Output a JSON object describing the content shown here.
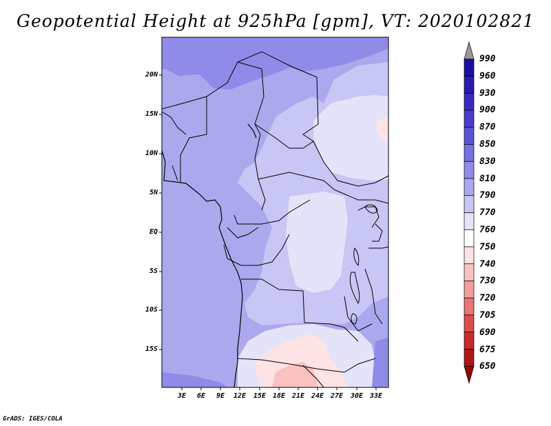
{
  "title": "Geopotential Height at 925hPa [gpm], VT: 2020102821",
  "footer": "GrADS: IGES/COLA",
  "map": {
    "y_ticks": [
      "20N",
      "15N",
      "10N",
      "5N",
      "EQ",
      "5S",
      "10S",
      "15S"
    ],
    "x_ticks": [
      "3E",
      "6E",
      "9E",
      "12E",
      "15E",
      "18E",
      "21E",
      "24E",
      "27E",
      "30E",
      "33E"
    ]
  },
  "colorbar": {
    "levels": [
      "990",
      "960",
      "930",
      "900",
      "870",
      "850",
      "830",
      "810",
      "790",
      "770",
      "760",
      "750",
      "740",
      "730",
      "720",
      "705",
      "690",
      "675",
      "650"
    ],
    "colors": [
      "#9a9a9a",
      "#1a0fa0",
      "#2a1ab0",
      "#3a2abf",
      "#4b3dcb",
      "#5c54d6",
      "#7670e0",
      "#908be8",
      "#aba8ee",
      "#c8c6f4",
      "#e4e3fa",
      "#ffffff",
      "#fde3e3",
      "#f9c2c2",
      "#f29e9e",
      "#e87474",
      "#dc4c4c",
      "#c82c2c",
      "#b01818",
      "#8e0c0c"
    ]
  }
}
